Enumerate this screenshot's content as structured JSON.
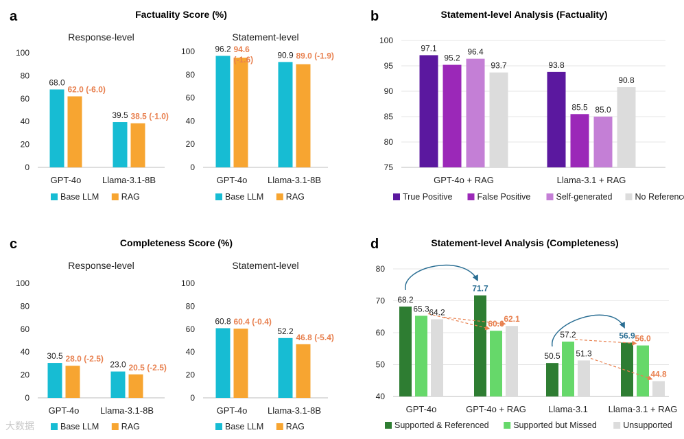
{
  "panels": {
    "a": {
      "letter": "a",
      "title": "Factuality Score (%)"
    },
    "b": {
      "letter": "b",
      "title": "Statement-level Analysis (Factuality)"
    },
    "c": {
      "letter": "c",
      "title": "Completeness Score (%)"
    },
    "d": {
      "letter": "d",
      "title": "Statement-level Analysis (Completeness)"
    }
  },
  "watermark": "大数据",
  "colors": {
    "base_llm": "#17bcd3",
    "rag": "#f7a531",
    "delta_text": "#e8804f",
    "true_pos": "#5b189f",
    "false_pos": "#9b28b8",
    "self_gen": "#c47fd6",
    "no_ref": "#dcdcdc",
    "supp_ref": "#2e7d32",
    "supp_missed": "#66d86a",
    "unsupported": "#dcdcdc",
    "arrow_blue": "#2a6e93"
  },
  "chart_data": [
    {
      "id": "a-response",
      "type": "bar",
      "title": "Response-level",
      "categories": [
        "GPT-4o",
        "Llama-3.1-8B"
      ],
      "ylim": [
        0,
        100
      ],
      "yticks": [
        "0",
        "20",
        "40",
        "60",
        "80",
        "100"
      ],
      "series": [
        {
          "name": "Base LLM",
          "values": [
            68.0,
            39.5
          ],
          "labels": [
            "68.0",
            "39.5"
          ]
        },
        {
          "name": "RAG",
          "values": [
            62.0,
            38.5
          ],
          "labels": [
            "62.0 (-6.0)",
            "38.5 (-1.0)"
          ]
        }
      ],
      "legend": [
        "Base LLM",
        "RAG"
      ]
    },
    {
      "id": "a-statement",
      "type": "bar",
      "title": "Statement-level",
      "categories": [
        "GPT-4o",
        "Llama-3.1-8B"
      ],
      "ylim": [
        0,
        100
      ],
      "yticks": [
        "0",
        "20",
        "40",
        "60",
        "80",
        "100"
      ],
      "series": [
        {
          "name": "Base LLM",
          "values": [
            96.2,
            90.9
          ],
          "labels": [
            "96.2",
            "90.9"
          ]
        },
        {
          "name": "RAG",
          "values": [
            94.6,
            89.0
          ],
          "labels": [
            "94.6",
            "89.0 (-1.9)"
          ],
          "extra_labels": [
            "(-1.6)",
            ""
          ]
        }
      ],
      "legend": [
        "Base LLM",
        "RAG"
      ]
    },
    {
      "id": "c-response",
      "type": "bar",
      "title": "Response-level",
      "categories": [
        "GPT-4o",
        "Llama-3.1-8B"
      ],
      "ylim": [
        0,
        100
      ],
      "yticks": [
        "0",
        "20",
        "40",
        "60",
        "80",
        "100"
      ],
      "series": [
        {
          "name": "Base LLM",
          "values": [
            30.5,
            23.0
          ],
          "labels": [
            "30.5",
            "23.0"
          ]
        },
        {
          "name": "RAG",
          "values": [
            28.0,
            20.5
          ],
          "labels": [
            "28.0 (-2.5)",
            "20.5 (-2.5)"
          ]
        }
      ],
      "legend": [
        "Base LLM",
        "RAG"
      ]
    },
    {
      "id": "c-statement",
      "type": "bar",
      "title": "Statement-level",
      "categories": [
        "GPT-4o",
        "Llama-3.1-8B"
      ],
      "ylim": [
        0,
        100
      ],
      "yticks": [
        "0",
        "20",
        "40",
        "60",
        "80",
        "100"
      ],
      "series": [
        {
          "name": "Base LLM",
          "values": [
            60.8,
            52.2
          ],
          "labels": [
            "60.8",
            "52.2"
          ]
        },
        {
          "name": "RAG",
          "values": [
            60.4,
            46.8
          ],
          "labels": [
            "60.4 (-0.4)",
            "46.8 (-5.4)"
          ]
        }
      ],
      "legend": [
        "Base LLM",
        "RAG"
      ]
    },
    {
      "id": "b",
      "type": "bar",
      "title": "Statement-level Analysis (Factuality)",
      "categories": [
        "GPT-4o + RAG",
        "Llama-3.1 + RAG"
      ],
      "ylim": [
        75,
        100
      ],
      "yticks": [
        "75",
        "80",
        "85",
        "90",
        "95",
        "100"
      ],
      "series": [
        {
          "name": "True Positive",
          "values": [
            97.1,
            93.8
          ],
          "labels": [
            "97.1",
            "93.8"
          ]
        },
        {
          "name": "False Positive",
          "values": [
            95.2,
            85.5
          ],
          "labels": [
            "95.2",
            "85.5"
          ]
        },
        {
          "name": "Self-generated",
          "values": [
            96.4,
            85.0
          ],
          "labels": [
            "96.4",
            "85.0"
          ]
        },
        {
          "name": "No Reference",
          "values": [
            93.7,
            90.8
          ],
          "labels": [
            "93.7",
            "90.8"
          ]
        }
      ],
      "legend": [
        "True Positive",
        "False Positive",
        "Self-generated",
        "No Reference"
      ]
    },
    {
      "id": "d",
      "type": "bar",
      "title": "Statement-level Analysis (Completeness)",
      "categories": [
        "GPT-4o",
        "GPT-4o + RAG",
        "Llama-3.1",
        "Llama-3.1 + RAG"
      ],
      "ylim": [
        40,
        80
      ],
      "yticks": [
        "40",
        "50",
        "60",
        "70",
        "80"
      ],
      "series": [
        {
          "name": "Supported & Referenced",
          "values": [
            68.2,
            71.7,
            50.5,
            56.9
          ],
          "labels": [
            "68.2",
            "71.7",
            "50.5",
            "56.9"
          ]
        },
        {
          "name": "Supported but Missed",
          "values": [
            65.3,
            60.6,
            57.2,
            56.0
          ],
          "labels": [
            "65.3",
            "60.6",
            "57.2",
            "56.0"
          ]
        },
        {
          "name": "Unsupported",
          "values": [
            64.2,
            62.1,
            51.3,
            44.8
          ],
          "labels": [
            "64.2",
            "62.1",
            "51.3",
            "44.8"
          ]
        }
      ],
      "legend": [
        "Supported & Referenced",
        "Supported but Missed",
        "Unsupported"
      ]
    }
  ]
}
